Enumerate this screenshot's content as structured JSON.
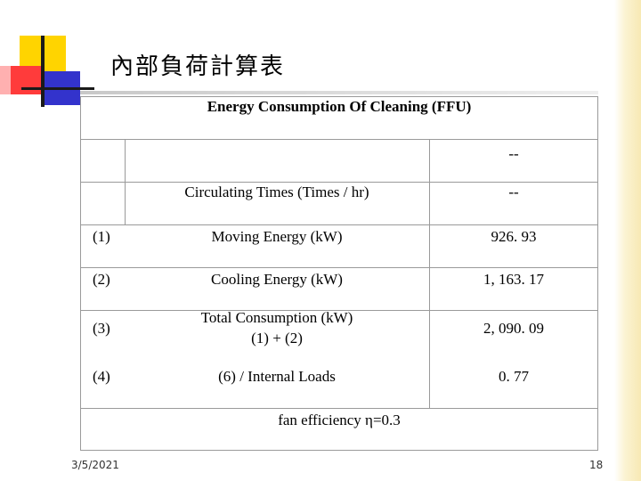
{
  "slide": {
    "title": "內部負荷計算表",
    "footer_date": "3/5/2021",
    "page_number": "18"
  },
  "table": {
    "header": "Energy Consumption Of Cleaning (FFU)",
    "row0_value": "--",
    "row1": {
      "label": "Circulating Times (Times / hr)",
      "value": "--"
    },
    "rows": [
      {
        "num": "(1)",
        "label": "Moving Energy (kW)",
        "value": "926. 93"
      },
      {
        "num": "(2)",
        "label": "Cooling Energy (kW)",
        "value": "1, 163. 17"
      },
      {
        "num": "(3)",
        "label_line1": "Total Consumption (kW)",
        "label_line2": "(1) + (2)",
        "value": "2, 090. 09"
      },
      {
        "num": "(4)",
        "label": "(6) / Internal Loads",
        "value": "0. 77"
      }
    ],
    "note": "fan efficiency η=0.3"
  }
}
